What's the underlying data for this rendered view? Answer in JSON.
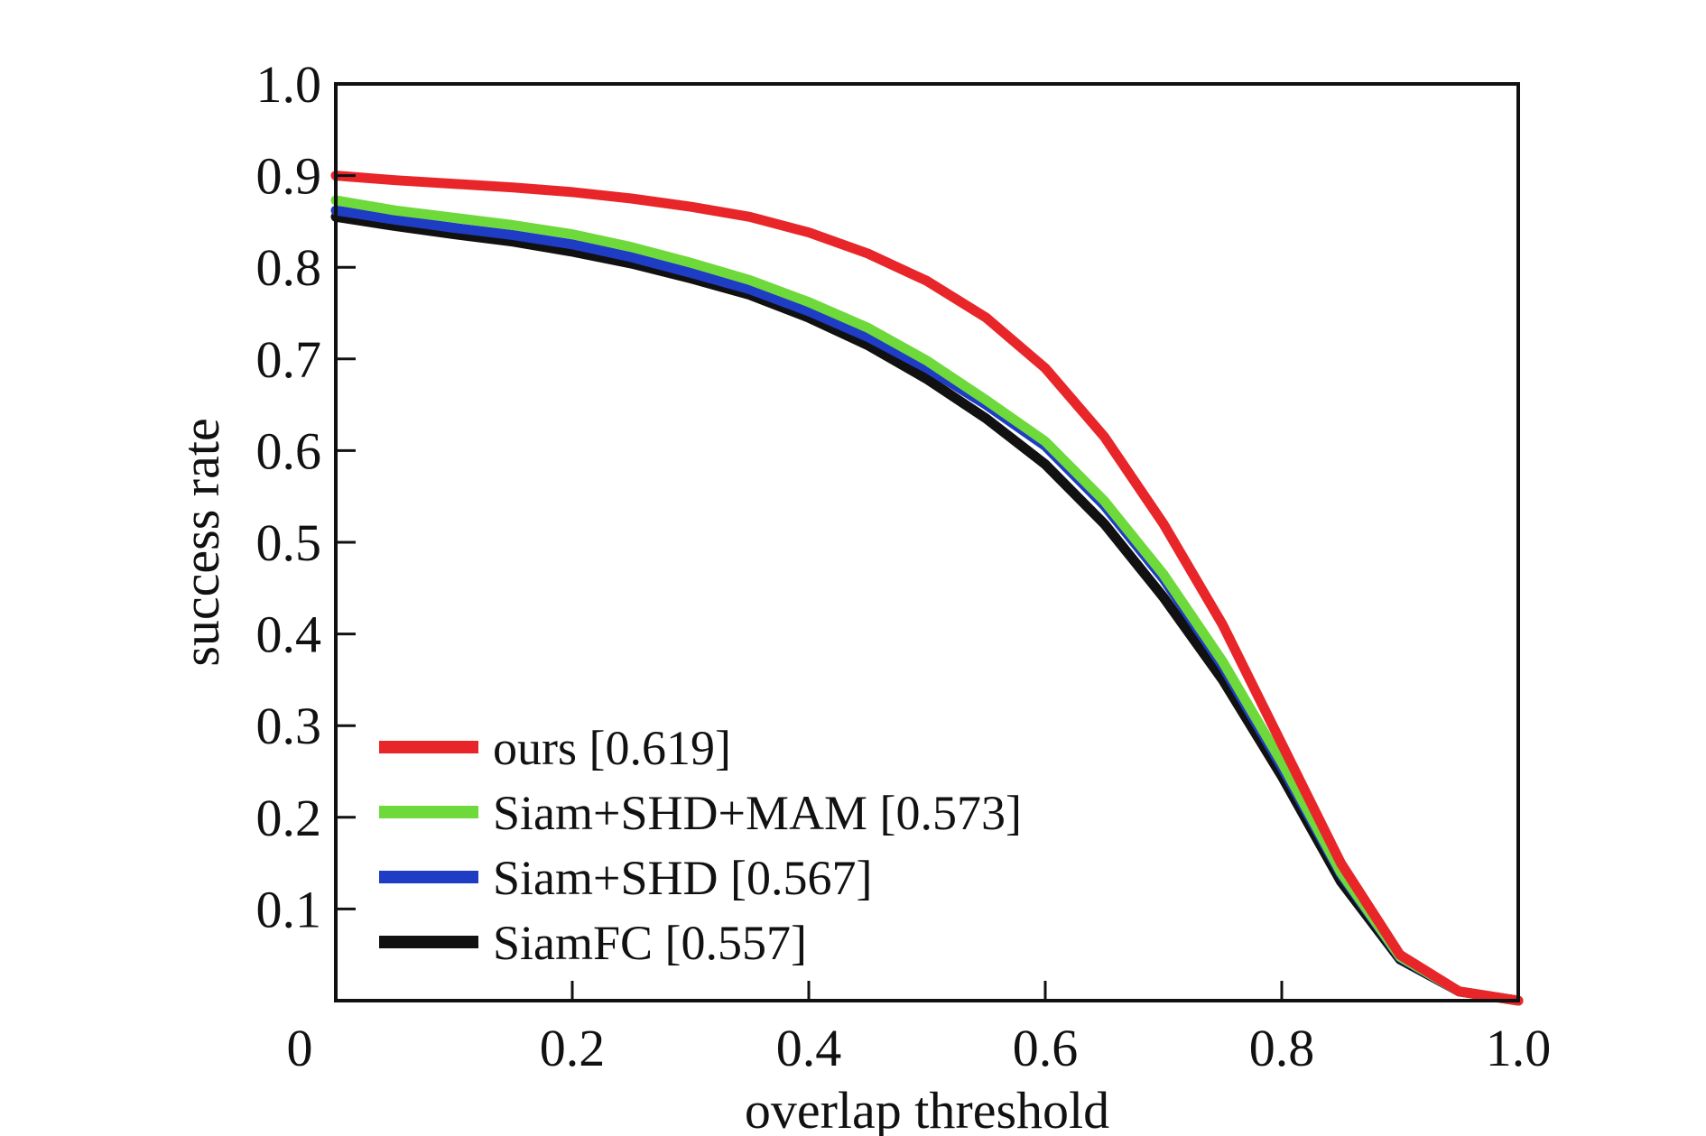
{
  "chart_data": {
    "type": "line",
    "xlabel": "overlap threshold",
    "ylabel": "success rate",
    "xlim": [
      0,
      1.0
    ],
    "ylim": [
      0,
      1.0
    ],
    "x_ticks": [
      "0",
      "0.2",
      "0.4",
      "0.6",
      "0.8",
      "1.0"
    ],
    "y_ticks": [
      "0.1",
      "0.2",
      "0.3",
      "0.4",
      "0.5",
      "0.6",
      "0.7",
      "0.8",
      "0.9",
      "1.0"
    ],
    "grid": false,
    "legend_position": "bottom-left",
    "x": [
      0,
      0.05,
      0.1,
      0.15,
      0.2,
      0.25,
      0.3,
      0.35,
      0.4,
      0.45,
      0.5,
      0.55,
      0.6,
      0.65,
      0.7,
      0.75,
      0.8,
      0.85,
      0.9,
      0.95,
      1.0
    ],
    "series": [
      {
        "name": "ours [0.619]",
        "color": "#e8262a",
        "values": [
          0.9,
          0.895,
          0.891,
          0.887,
          0.882,
          0.875,
          0.866,
          0.855,
          0.838,
          0.815,
          0.785,
          0.745,
          0.69,
          0.615,
          0.52,
          0.41,
          0.28,
          0.15,
          0.05,
          0.01,
          0.0
        ]
      },
      {
        "name": "Siam+SHD+MAM [0.573]",
        "color": "#6ed93a",
        "values": [
          0.873,
          0.862,
          0.854,
          0.846,
          0.836,
          0.822,
          0.805,
          0.786,
          0.762,
          0.734,
          0.698,
          0.655,
          0.61,
          0.545,
          0.465,
          0.37,
          0.26,
          0.14,
          0.048,
          0.01,
          0.0
        ]
      },
      {
        "name": "Siam+SHD [0.567]",
        "color": "#1f3cc4",
        "values": [
          0.862,
          0.852,
          0.843,
          0.835,
          0.825,
          0.811,
          0.794,
          0.776,
          0.752,
          0.724,
          0.69,
          0.65,
          0.605,
          0.54,
          0.46,
          0.365,
          0.255,
          0.138,
          0.047,
          0.01,
          0.0
        ]
      },
      {
        "name": "SiamFC [0.557]",
        "color": "#111111",
        "values": [
          0.855,
          0.845,
          0.836,
          0.828,
          0.817,
          0.804,
          0.788,
          0.77,
          0.745,
          0.715,
          0.678,
          0.635,
          0.585,
          0.52,
          0.44,
          0.35,
          0.245,
          0.13,
          0.045,
          0.01,
          0.0
        ]
      }
    ]
  }
}
